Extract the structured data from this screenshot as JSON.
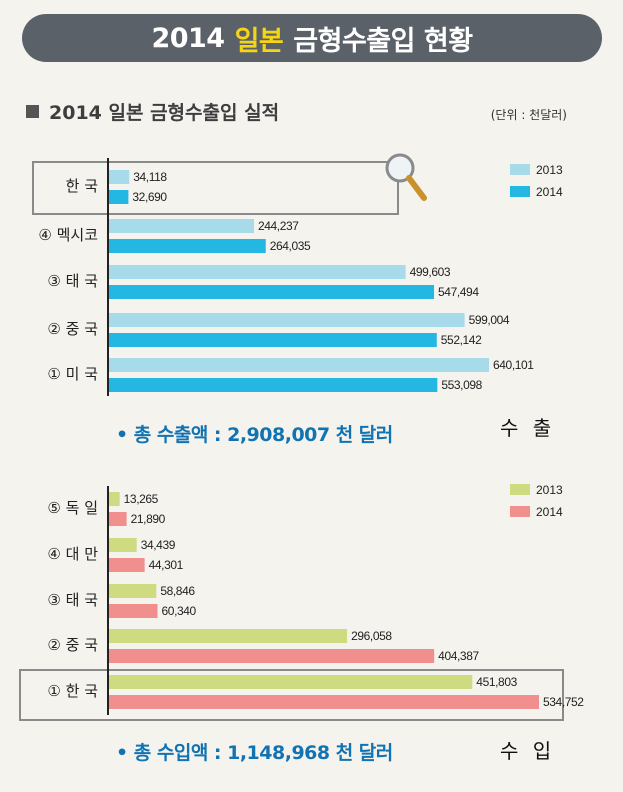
{
  "banner": {
    "year": "2014",
    "highlight": "일본",
    "rest": "금형수출입 현황"
  },
  "section_title": "2014 일본 금형수출입 실적",
  "unit": "(단위 : 천달러)",
  "export_total": "• 총 수출액 : 2,908,007 천 달러",
  "export_kind": "수 출",
  "import_total": "• 총 수입액 : 1,148,968 천 달러",
  "import_kind": "수 입",
  "chart_data": [
    {
      "type": "bar",
      "orientation": "horizontal",
      "title": "수 출",
      "categories": [
        "한 국",
        "④ 멕시코",
        "③ 태 국",
        "② 중 국",
        "① 미 국"
      ],
      "highlighted_category": "한 국",
      "series": [
        {
          "name": "2013",
          "color": "#a8dbea",
          "values": [
            34118,
            244237,
            499603,
            599004,
            640101
          ]
        },
        {
          "name": "2014",
          "color": "#23b7e2",
          "values": [
            32690,
            264035,
            547494,
            552142,
            553098
          ]
        }
      ],
      "legend": "top-right"
    },
    {
      "type": "bar",
      "orientation": "horizontal",
      "title": "수 입",
      "categories": [
        "⑤ 독 일",
        "④ 대 만",
        "③ 태 국",
        "② 중 국",
        "① 한 국"
      ],
      "highlighted_category": "① 한 국",
      "series": [
        {
          "name": "2013",
          "color": "#cfdb80",
          "values": [
            13265,
            34439,
            58846,
            296058,
            451803
          ]
        },
        {
          "name": "2014",
          "color": "#f08f8d",
          "values": [
            21890,
            44301,
            60340,
            404387,
            534752
          ]
        }
      ],
      "legend": "top-right"
    }
  ]
}
